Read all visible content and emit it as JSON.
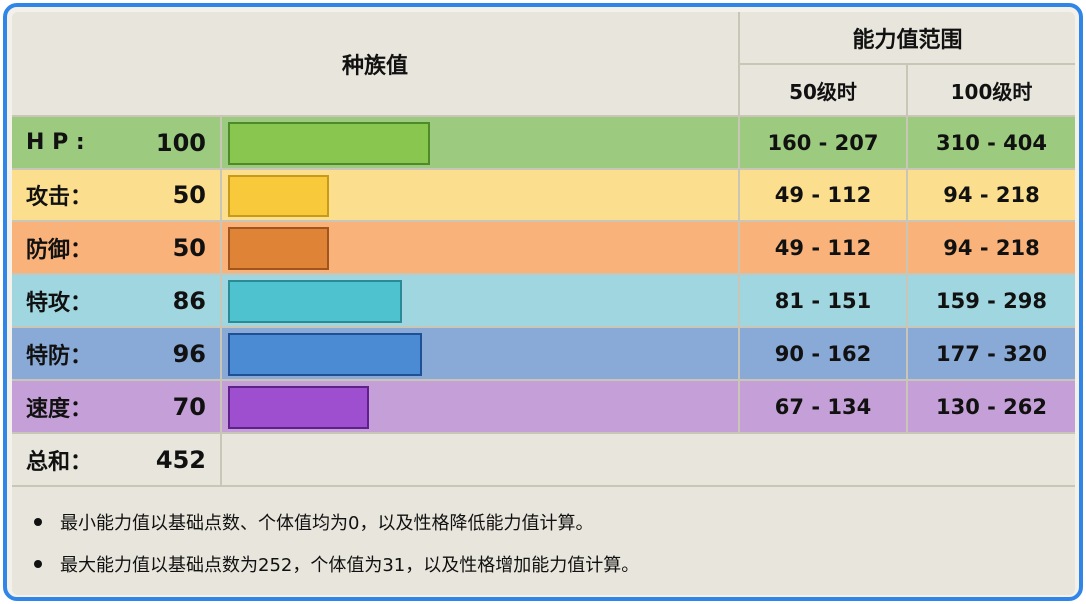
{
  "header": {
    "base_stats": "种族值",
    "stat_range": "能力值范围",
    "lv50": "50级时",
    "lv100": "100级时"
  },
  "stats": [
    {
      "label": "H P :",
      "value": 100,
      "lv50": "160 - 207",
      "lv100": "310 - 404",
      "row_color": "#9ccb7f",
      "bar_color": "#88c650",
      "bar_border": "#4e8a2a"
    },
    {
      "label": "攻击：",
      "value": 50,
      "lv50": "49 - 112",
      "lv100": "94 - 218",
      "row_color": "#fbdf8e",
      "bar_color": "#f8c93a",
      "bar_border": "#c79a1a"
    },
    {
      "label": "防御：",
      "value": 50,
      "lv50": "49 - 112",
      "lv100": "94 - 218",
      "row_color": "#f8b27a",
      "bar_color": "#df8437",
      "bar_border": "#a0551e"
    },
    {
      "label": "特攻：",
      "value": 86,
      "lv50": "81 - 151",
      "lv100": "159 - 298",
      "row_color": "#a0d6df",
      "bar_color": "#4fc2cf",
      "bar_border": "#2a8a95"
    },
    {
      "label": "特防：",
      "value": 96,
      "lv50": "90 - 162",
      "lv100": "177 - 320",
      "row_color": "#89a9d6",
      "bar_color": "#4a8bd3",
      "bar_border": "#1f4f94"
    },
    {
      "label": "速度：",
      "value": 70,
      "lv50": "67 - 134",
      "lv100": "130 - 262",
      "row_color": "#c59fd7",
      "bar_color": "#9e4fd0",
      "bar_border": "#5e2089"
    }
  ],
  "total": {
    "label": "总和：",
    "value": "452"
  },
  "notes": [
    "最小能力值以基础点数、个体值均为0，以及性格降低能力值计算。",
    "最大能力值以基础点数为252，个体值为31，以及性格增加能力值计算。"
  ]
}
